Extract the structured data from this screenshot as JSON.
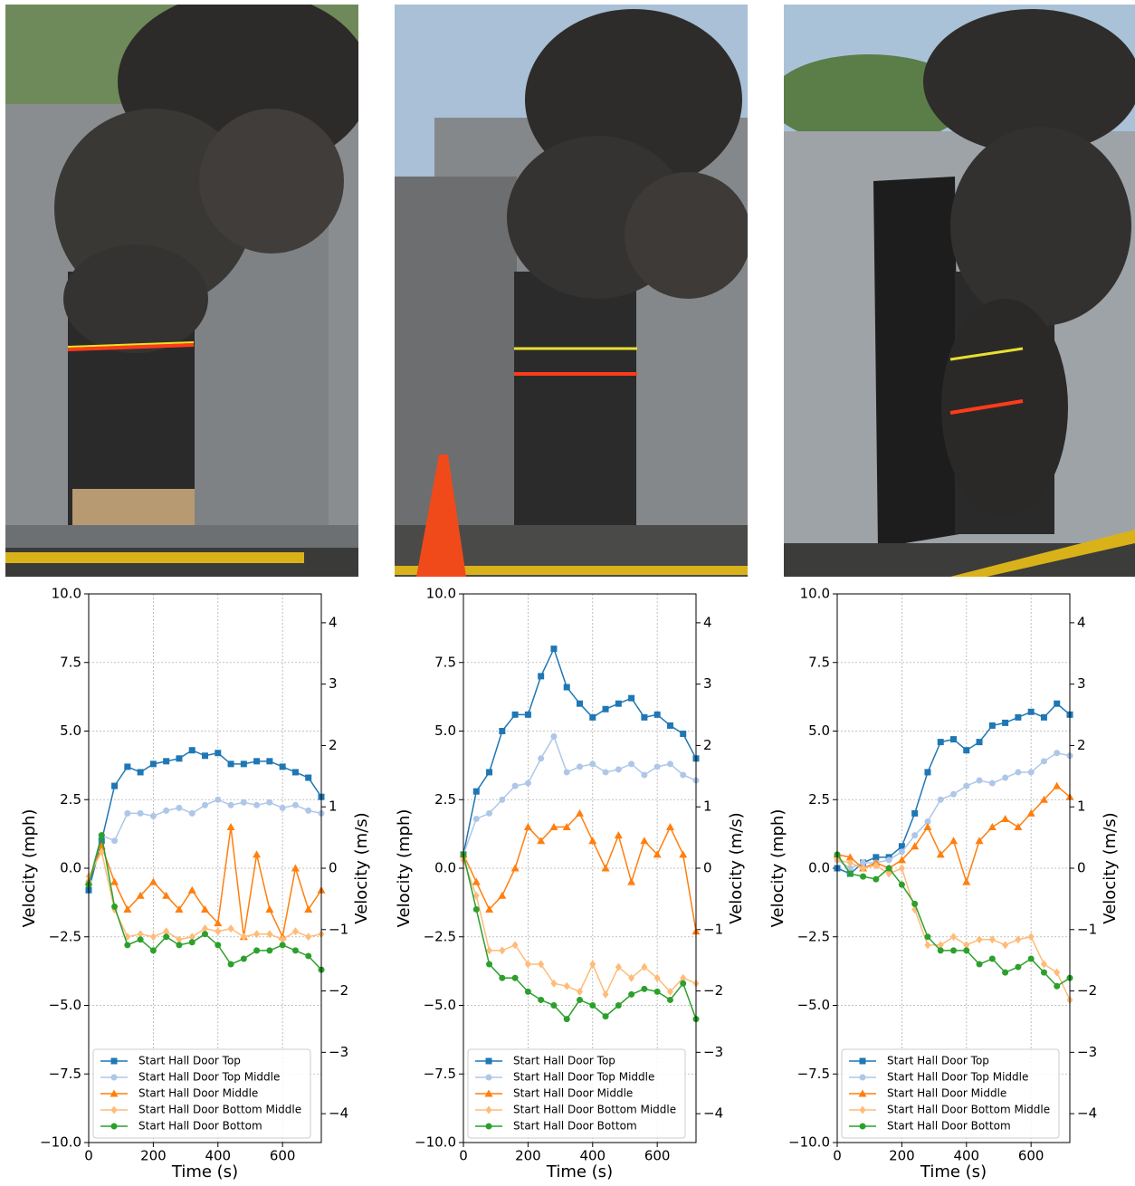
{
  "chart_data": [
    {
      "type": "line",
      "xlabel": "Time (s)",
      "ylabel": "Velocity (mph)",
      "y2label": "Velocity (m/s)",
      "x": [
        0,
        40,
        80,
        120,
        160,
        200,
        240,
        280,
        320,
        360,
        400,
        440,
        480,
        520,
        560,
        600,
        640,
        680,
        720
      ],
      "xlim": [
        0,
        720
      ],
      "xticks": [
        0,
        200,
        400,
        600
      ],
      "ylim": [
        -10,
        10
      ],
      "yticks": [
        {
          "value": -10,
          "label": "−10.0"
        },
        {
          "value": -7.5,
          "label": "−7.5"
        },
        {
          "value": -5,
          "label": "−5.0"
        },
        {
          "value": -2.5,
          "label": "−2.5"
        },
        {
          "value": 0,
          "label": "0.0"
        },
        {
          "value": 2.5,
          "label": "2.5"
        },
        {
          "value": 5,
          "label": "5.0"
        },
        {
          "value": 7.5,
          "label": "7.5"
        },
        {
          "value": 10,
          "label": "10.0"
        }
      ],
      "y2lim": [
        -4.4704,
        4.4704
      ],
      "y2ticks": [
        {
          "value": -4,
          "label": "−4"
        },
        {
          "value": -3,
          "label": "−3"
        },
        {
          "value": -2,
          "label": "−2"
        },
        {
          "value": -1,
          "label": "−1"
        },
        0,
        1,
        2,
        3,
        4
      ],
      "grid": true,
      "legend": "lower left",
      "series": [
        {
          "name": "Start Hall Door Top",
          "color": "#1f77b4",
          "marker": "square",
          "values": [
            -0.8,
            1,
            3,
            3.7,
            3.5,
            3.8,
            3.9,
            4,
            4.3,
            4.1,
            4.2,
            3.8,
            3.8,
            3.9,
            3.9,
            3.7,
            3.5,
            3.3,
            2.6
          ]
        },
        {
          "name": "Start Hall Door Top Middle",
          "color": "#aec7e8",
          "marker": "circle",
          "values": [
            -0.5,
            1.2,
            1,
            2,
            2,
            1.9,
            2.1,
            2.2,
            2,
            2.3,
            2.5,
            2.3,
            2.4,
            2.3,
            2.4,
            2.2,
            2.3,
            2.1,
            2
          ]
        },
        {
          "name": "Start Hall Door Middle",
          "color": "#ff7f0e",
          "marker": "triangle",
          "values": [
            -0.5,
            0.8,
            -0.5,
            -1.5,
            -1,
            -0.5,
            -1,
            -1.5,
            -0.8,
            -1.5,
            -2,
            1.5,
            -2.5,
            0.5,
            -1.5,
            -2.5,
            0,
            -1.5,
            -0.8
          ]
        },
        {
          "name": "Start Hall Door Bottom Middle",
          "color": "#ffbb78",
          "marker": "diamond",
          "values": [
            -0.3,
            0.6,
            -1.5,
            -2.5,
            -2.4,
            -2.5,
            -2.3,
            -2.6,
            -2.5,
            -2.2,
            -2.3,
            -2.2,
            -2.5,
            -2.4,
            -2.4,
            -2.6,
            -2.3,
            -2.5,
            -2.4
          ]
        },
        {
          "name": "Start Hall Door Bottom",
          "color": "#2ca02c",
          "marker": "circle",
          "values": [
            -0.6,
            1.2,
            -1.4,
            -2.8,
            -2.6,
            -3,
            -2.5,
            -2.8,
            -2.7,
            -2.4,
            -2.8,
            -3.5,
            -3.3,
            -3,
            -3,
            -2.8,
            -3,
            -3.2,
            -3.7
          ]
        }
      ]
    },
    {
      "type": "line",
      "xlabel": "Time (s)",
      "ylabel": "Velocity (mph)",
      "y2label": "Velocity (m/s)",
      "x": [
        0,
        40,
        80,
        120,
        160,
        200,
        240,
        280,
        320,
        360,
        400,
        440,
        480,
        520,
        560,
        600,
        640,
        680,
        720
      ],
      "xlim": [
        0,
        720
      ],
      "xticks": [
        0,
        200,
        400,
        600
      ],
      "ylim": [
        -10,
        10
      ],
      "yticks": [
        {
          "value": -10,
          "label": "−10.0"
        },
        {
          "value": -7.5,
          "label": "−7.5"
        },
        {
          "value": -5,
          "label": "−5.0"
        },
        {
          "value": -2.5,
          "label": "−2.5"
        },
        {
          "value": 0,
          "label": "0.0"
        },
        {
          "value": 2.5,
          "label": "2.5"
        },
        {
          "value": 5,
          "label": "5.0"
        },
        {
          "value": 7.5,
          "label": "7.5"
        },
        {
          "value": 10,
          "label": "10.0"
        }
      ],
      "y2lim": [
        -4.4704,
        4.4704
      ],
      "y2ticks": [
        {
          "value": -4,
          "label": "−4"
        },
        {
          "value": -3,
          "label": "−3"
        },
        {
          "value": -2,
          "label": "−2"
        },
        {
          "value": -1,
          "label": "−1"
        },
        0,
        1,
        2,
        3,
        4
      ],
      "grid": true,
      "legend": "lower left",
      "series": [
        {
          "name": "Start Hall Door Top",
          "color": "#1f77b4",
          "marker": "square",
          "values": [
            0.5,
            2.8,
            3.5,
            5,
            5.6,
            5.6,
            7,
            8,
            6.6,
            6,
            5.5,
            5.8,
            6,
            6.2,
            5.5,
            5.6,
            5.2,
            4.9,
            4
          ]
        },
        {
          "name": "Start Hall Door Top Middle",
          "color": "#aec7e8",
          "marker": "circle",
          "values": [
            0.5,
            1.8,
            2,
            2.5,
            3,
            3.1,
            4,
            4.8,
            3.5,
            3.7,
            3.8,
            3.5,
            3.6,
            3.8,
            3.4,
            3.7,
            3.8,
            3.4,
            3.2
          ]
        },
        {
          "name": "Start Hall Door Middle",
          "color": "#ff7f0e",
          "marker": "triangle",
          "values": [
            0.5,
            -0.5,
            -1.5,
            -1,
            0,
            1.5,
            1,
            1.5,
            1.5,
            2,
            1,
            0,
            1.2,
            -0.5,
            1,
            0.5,
            1.5,
            0.5,
            -2.3
          ]
        },
        {
          "name": "Start Hall Door Bottom Middle",
          "color": "#ffbb78",
          "marker": "diamond",
          "values": [
            0.3,
            -1,
            -3,
            -3,
            -2.8,
            -3.5,
            -3.5,
            -4.2,
            -4.3,
            -4.5,
            -3.5,
            -4.6,
            -3.6,
            -4,
            -3.6,
            -4,
            -4.5,
            -4,
            -4.2
          ]
        },
        {
          "name": "Start Hall Door Bottom",
          "color": "#2ca02c",
          "marker": "circle",
          "values": [
            0.5,
            -1.5,
            -3.5,
            -4,
            -4,
            -4.5,
            -4.8,
            -5,
            -5.5,
            -4.8,
            -5,
            -5.4,
            -5,
            -4.6,
            -4.4,
            -4.5,
            -4.8,
            -4.2,
            -5.5
          ]
        }
      ]
    },
    {
      "type": "line",
      "xlabel": "Time (s)",
      "ylabel": "Velocity (mph)",
      "y2label": "Velocity (m/s)",
      "x": [
        0,
        40,
        80,
        120,
        160,
        200,
        240,
        280,
        320,
        360,
        400,
        440,
        480,
        520,
        560,
        600,
        640,
        680,
        720
      ],
      "xlim": [
        0,
        720
      ],
      "xticks": [
        0,
        200,
        400,
        600
      ],
      "ylim": [
        -10,
        10
      ],
      "yticks": [
        {
          "value": -10,
          "label": "−10.0"
        },
        {
          "value": -7.5,
          "label": "−7.5"
        },
        {
          "value": -5,
          "label": "−5.0"
        },
        {
          "value": -2.5,
          "label": "−2.5"
        },
        {
          "value": 0,
          "label": "0.0"
        },
        {
          "value": 2.5,
          "label": "2.5"
        },
        {
          "value": 5,
          "label": "5.0"
        },
        {
          "value": 7.5,
          "label": "7.5"
        },
        {
          "value": 10,
          "label": "10.0"
        }
      ],
      "y2lim": [
        -4.4704,
        4.4704
      ],
      "y2ticks": [
        {
          "value": -4,
          "label": "−4"
        },
        {
          "value": -3,
          "label": "−3"
        },
        {
          "value": -2,
          "label": "−2"
        },
        {
          "value": -1,
          "label": "−1"
        },
        0,
        1,
        2,
        3,
        4
      ],
      "grid": true,
      "legend": "lower left",
      "series": [
        {
          "name": "Start Hall Door Top",
          "color": "#1f77b4",
          "marker": "square",
          "values": [
            0,
            -0.2,
            0.2,
            0.4,
            0.4,
            0.8,
            2,
            3.5,
            4.6,
            4.7,
            4.3,
            4.6,
            5.2,
            5.3,
            5.5,
            5.7,
            5.5,
            6,
            5.6
          ]
        },
        {
          "name": "Start Hall Door Top Middle",
          "color": "#aec7e8",
          "marker": "circle",
          "values": [
            0.3,
            0,
            0.2,
            0.2,
            0.3,
            0.6,
            1.2,
            1.7,
            2.5,
            2.7,
            3,
            3.2,
            3.1,
            3.3,
            3.5,
            3.5,
            3.9,
            4.2,
            4.1
          ]
        },
        {
          "name": "Start Hall Door Middle",
          "color": "#ff7f0e",
          "marker": "triangle",
          "values": [
            0.5,
            0.4,
            0,
            0.2,
            0,
            0.3,
            0.8,
            1.5,
            0.5,
            1,
            -0.5,
            1,
            1.5,
            1.8,
            1.5,
            2,
            2.5,
            3,
            2.6
          ]
        },
        {
          "name": "Start Hall Door Bottom Middle",
          "color": "#ffbb78",
          "marker": "diamond",
          "values": [
            0.3,
            0.2,
            0,
            0.1,
            -0.2,
            0,
            -1.5,
            -2.8,
            -2.8,
            -2.5,
            -2.8,
            -2.6,
            -2.6,
            -2.8,
            -2.6,
            -2.5,
            -3.5,
            -3.8,
            -4.8
          ]
        },
        {
          "name": "Start Hall Door Bottom",
          "color": "#2ca02c",
          "marker": "circle",
          "values": [
            0.5,
            -0.2,
            -0.3,
            -0.4,
            0,
            -0.6,
            -1.3,
            -2.5,
            -3,
            -3,
            -3,
            -3.5,
            -3.3,
            -3.8,
            -3.6,
            -3.3,
            -3.8,
            -4.3,
            -4
          ]
        }
      ]
    }
  ]
}
